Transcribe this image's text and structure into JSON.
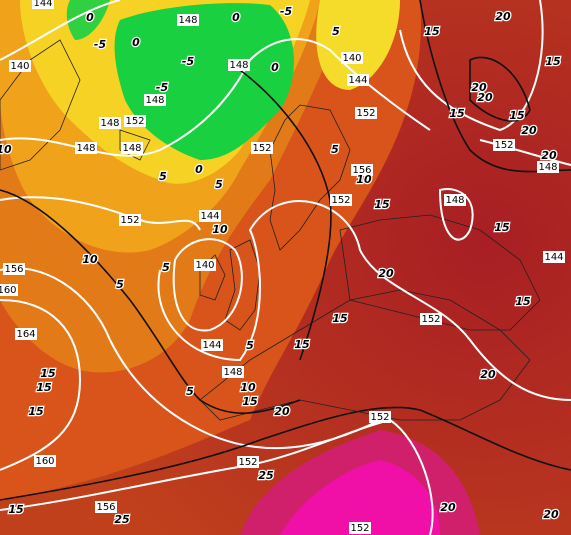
{
  "height_labels": [
    "144",
    "148",
    "140",
    "148",
    "152",
    "148",
    "148",
    "148",
    "148",
    "140",
    "144",
    "152",
    "152",
    "156",
    "152",
    "148",
    "152",
    "148",
    "144",
    "152",
    "144",
    "140",
    "156",
    "160",
    "164",
    "144",
    "148",
    "152",
    "152",
    "152",
    "160",
    "156",
    "152"
  ],
  "temperature_labels": [
    "-5",
    "-5",
    "0",
    "0",
    "-5",
    "-5",
    "0",
    "0",
    "5",
    "15",
    "20",
    "15",
    "20",
    "20",
    "15",
    "15",
    "20",
    "20",
    "5",
    "5",
    "0",
    "10",
    "5",
    "10",
    "15",
    "10",
    "10",
    "5",
    "5",
    "15",
    "20",
    "15",
    "15",
    "15",
    "5",
    "5",
    "10",
    "15",
    "20",
    "15",
    "15",
    "15",
    "20",
    "25",
    "25",
    "20",
    "15",
    "20"
  ]
}
